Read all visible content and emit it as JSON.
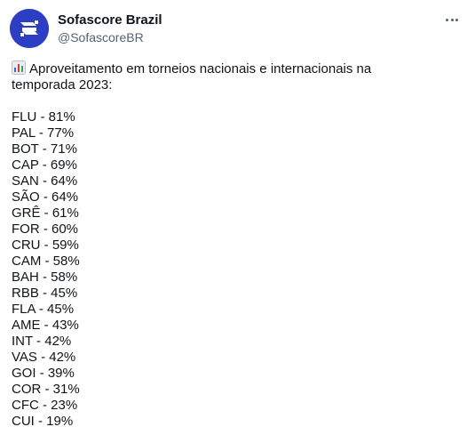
{
  "author": {
    "display_name": "Sofascore Brazil",
    "handle": "@SofascoreBR",
    "avatar_color": "#2c3ec4"
  },
  "tweet": {
    "headline_icon": "bar-chart-icon",
    "headline_line1": "Aproveitamento em torneios nacionais e internacionais na",
    "headline_line2": "temporada 2023:",
    "items": [
      "FLU - 81%",
      "PAL - 77%",
      "BOT - 71%",
      "CAP - 69%",
      "SAN - 64%",
      "SÃO - 64%",
      "GRÊ - 61%",
      "FOR - 60%",
      "CRU - 59%",
      "CAM - 58%",
      "BAH - 58%",
      "RBB - 45%",
      "FLA - 45%",
      "AME - 43%",
      "INT - 42%",
      "VAS - 42%",
      "GOI - 39%",
      "COR - 31%",
      "CFC - 23%",
      "CUI - 19%"
    ]
  }
}
